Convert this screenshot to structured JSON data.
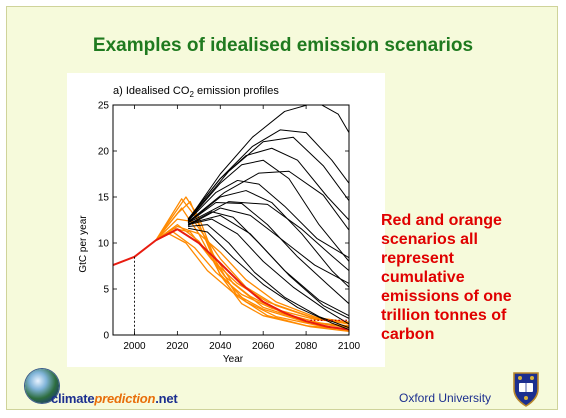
{
  "slide": {
    "title": "Examples of idealised emission scenarios",
    "caption_lines": [
      "Red and orange",
      "scenarios all",
      "represent",
      "cumulative",
      "emissions of one",
      "trillion tonnes of",
      "carbon"
    ],
    "footer": {
      "logo_part1": "climate",
      "logo_part2": "prediction",
      "logo_part3": ".net",
      "university": "Oxford University"
    }
  },
  "chart_data": {
    "type": "line",
    "title_prefix": "a) Idealised CO",
    "title_sub": "2",
    "title_suffix": " emission profiles",
    "xlabel": "Year",
    "ylabel": "GtC per year",
    "xlim": [
      1990,
      2100
    ],
    "ylim": [
      0,
      25
    ],
    "xticks": [
      2000,
      2020,
      2040,
      2060,
      2080,
      2100
    ],
    "yticks": [
      0,
      5,
      10,
      15,
      20,
      25
    ],
    "marker_year": 2000,
    "colors": {
      "red": "#e81c10",
      "orange": "#ff8a00",
      "black": "#000000",
      "dotted": "#c00000"
    },
    "dotted_level": 1.6,
    "series": [
      {
        "color": "red",
        "points": [
          [
            1990,
            7.6
          ],
          [
            2000,
            8.5
          ],
          [
            2010,
            10.3
          ],
          [
            2020,
            11.5
          ],
          [
            2030,
            10.0
          ],
          [
            2040,
            7.8
          ],
          [
            2050,
            5.5
          ],
          [
            2060,
            3.6
          ],
          [
            2070,
            2.4
          ],
          [
            2080,
            1.5
          ],
          [
            2090,
            0.9
          ],
          [
            2100,
            0.6
          ]
        ]
      },
      {
        "color": "orange",
        "points": [
          [
            2010,
            10.3
          ],
          [
            2020,
            13.2
          ],
          [
            2026,
            14.5
          ],
          [
            2032,
            11.0
          ],
          [
            2040,
            6.5
          ],
          [
            2050,
            3.4
          ],
          [
            2060,
            2.1
          ],
          [
            2080,
            1.0
          ],
          [
            2100,
            0.6
          ]
        ]
      },
      {
        "color": "orange",
        "points": [
          [
            2010,
            10.3
          ],
          [
            2022,
            14.8
          ],
          [
            2028,
            13.0
          ],
          [
            2036,
            9.0
          ],
          [
            2046,
            5.6
          ],
          [
            2060,
            3.0
          ],
          [
            2080,
            1.5
          ],
          [
            2100,
            0.9
          ]
        ]
      },
      {
        "color": "orange",
        "points": [
          [
            2010,
            10.3
          ],
          [
            2020,
            12.6
          ],
          [
            2028,
            12.3
          ],
          [
            2040,
            8.3
          ],
          [
            2052,
            5.2
          ],
          [
            2066,
            3.2
          ],
          [
            2084,
            1.8
          ],
          [
            2100,
            1.2
          ]
        ]
      },
      {
        "color": "orange",
        "points": [
          [
            2010,
            10.3
          ],
          [
            2018,
            11.6
          ],
          [
            2026,
            11.2
          ],
          [
            2036,
            8.2
          ],
          [
            2048,
            5.6
          ],
          [
            2062,
            3.6
          ],
          [
            2082,
            2.0
          ],
          [
            2100,
            1.4
          ]
        ]
      },
      {
        "color": "orange",
        "points": [
          [
            2010,
            10.3
          ],
          [
            2020,
            12.0
          ],
          [
            2030,
            10.2
          ],
          [
            2042,
            6.4
          ],
          [
            2054,
            4.2
          ],
          [
            2070,
            2.3
          ],
          [
            2090,
            1.1
          ],
          [
            2100,
            0.8
          ]
        ]
      },
      {
        "color": "orange",
        "points": [
          [
            2010,
            10.3
          ],
          [
            2016,
            11.0
          ],
          [
            2024,
            10.0
          ],
          [
            2034,
            7.0
          ],
          [
            2046,
            4.6
          ],
          [
            2060,
            2.8
          ],
          [
            2080,
            1.4
          ],
          [
            2100,
            1.0
          ]
        ]
      },
      {
        "color": "orange",
        "points": [
          [
            2010,
            10.3
          ],
          [
            2022,
            13.8
          ],
          [
            2030,
            11.0
          ],
          [
            2040,
            6.6
          ],
          [
            2052,
            3.6
          ],
          [
            2066,
            2.0
          ],
          [
            2086,
            1.0
          ],
          [
            2100,
            0.5
          ]
        ]
      },
      {
        "color": "orange",
        "points": [
          [
            2010,
            10.3
          ],
          [
            2024,
            15.0
          ],
          [
            2030,
            12.8
          ],
          [
            2038,
            8.0
          ],
          [
            2048,
            4.2
          ],
          [
            2062,
            2.1
          ],
          [
            2082,
            0.9
          ],
          [
            2100,
            0.4
          ]
        ]
      },
      {
        "color": "orange",
        "points": [
          [
            2010,
            10.3
          ],
          [
            2020,
            11.8
          ],
          [
            2030,
            11.0
          ],
          [
            2040,
            9.0
          ],
          [
            2052,
            6.0
          ],
          [
            2066,
            3.6
          ],
          [
            2086,
            1.8
          ],
          [
            2100,
            1.2
          ]
        ]
      },
      {
        "color": "orange",
        "points": [
          [
            2010,
            10.3
          ],
          [
            2018,
            11.2
          ],
          [
            2028,
            9.5
          ],
          [
            2038,
            6.8
          ],
          [
            2050,
            4.4
          ],
          [
            2064,
            2.9
          ],
          [
            2084,
            1.7
          ],
          [
            2100,
            1.3
          ]
        ]
      },
      {
        "color": "black",
        "points": [
          [
            2025,
            12.5
          ],
          [
            2040,
            17.5
          ],
          [
            2055,
            21.5
          ],
          [
            2070,
            24.3
          ],
          [
            2085,
            25.3
          ],
          [
            2095,
            24.0
          ],
          [
            2100,
            22.0
          ]
        ]
      },
      {
        "color": "black",
        "points": [
          [
            2025,
            12.6
          ],
          [
            2040,
            17.0
          ],
          [
            2055,
            20.5
          ],
          [
            2068,
            22.3
          ],
          [
            2080,
            22.0
          ],
          [
            2092,
            19.0
          ],
          [
            2100,
            16.5
          ]
        ]
      },
      {
        "color": "black",
        "points": [
          [
            2025,
            12.6
          ],
          [
            2040,
            17.0
          ],
          [
            2052,
            19.5
          ],
          [
            2064,
            20.3
          ],
          [
            2076,
            19.0
          ],
          [
            2090,
            15.0
          ],
          [
            2100,
            12.5
          ]
        ]
      },
      {
        "color": "black",
        "points": [
          [
            2025,
            12.4
          ],
          [
            2040,
            16.5
          ],
          [
            2050,
            18.5
          ],
          [
            2060,
            19.0
          ],
          [
            2072,
            17.0
          ],
          [
            2086,
            12.0
          ],
          [
            2100,
            8.0
          ]
        ]
      },
      {
        "color": "black",
        "points": [
          [
            2025,
            12.4
          ],
          [
            2038,
            15.5
          ],
          [
            2048,
            16.8
          ],
          [
            2058,
            16.4
          ],
          [
            2070,
            14.0
          ],
          [
            2085,
            10.5
          ],
          [
            2100,
            8.4
          ]
        ]
      },
      {
        "color": "black",
        "points": [
          [
            2025,
            12.2
          ],
          [
            2040,
            15.0
          ],
          [
            2052,
            15.7
          ],
          [
            2064,
            14.4
          ],
          [
            2078,
            11.0
          ],
          [
            2092,
            7.0
          ],
          [
            2100,
            5.2
          ]
        ]
      },
      {
        "color": "black",
        "points": [
          [
            2025,
            12.2
          ],
          [
            2038,
            14.4
          ],
          [
            2050,
            14.3
          ],
          [
            2062,
            12.0
          ],
          [
            2076,
            8.5
          ],
          [
            2090,
            5.5
          ],
          [
            2100,
            3.4
          ]
        ]
      },
      {
        "color": "black",
        "points": [
          [
            2025,
            12.0
          ],
          [
            2036,
            13.4
          ],
          [
            2046,
            12.8
          ],
          [
            2058,
            10.0
          ],
          [
            2072,
            6.5
          ],
          [
            2088,
            3.2
          ],
          [
            2100,
            1.8
          ]
        ]
      },
      {
        "color": "black",
        "points": [
          [
            2025,
            12.0
          ],
          [
            2036,
            12.6
          ],
          [
            2048,
            11.0
          ],
          [
            2060,
            8.0
          ],
          [
            2074,
            5.2
          ],
          [
            2090,
            2.6
          ],
          [
            2100,
            1.2
          ]
        ]
      },
      {
        "color": "black",
        "points": [
          [
            2025,
            11.8
          ],
          [
            2034,
            12.0
          ],
          [
            2044,
            10.0
          ],
          [
            2056,
            6.8
          ],
          [
            2070,
            4.1
          ],
          [
            2086,
            2.0
          ],
          [
            2100,
            0.8
          ]
        ]
      },
      {
        "color": "black",
        "points": [
          [
            2025,
            11.9
          ],
          [
            2040,
            13.8
          ],
          [
            2054,
            13.0
          ],
          [
            2068,
            10.5
          ],
          [
            2084,
            7.6
          ],
          [
            2100,
            5.6
          ]
        ]
      },
      {
        "color": "black",
        "points": [
          [
            2025,
            12.3
          ],
          [
            2042,
            15.5
          ],
          [
            2058,
            17.6
          ],
          [
            2072,
            17.8
          ],
          [
            2088,
            15.2
          ],
          [
            2100,
            11.4
          ]
        ]
      },
      {
        "color": "black",
        "points": [
          [
            2025,
            12.5
          ],
          [
            2044,
            17.8
          ],
          [
            2060,
            21.0
          ],
          [
            2074,
            21.5
          ],
          [
            2088,
            18.4
          ],
          [
            2100,
            14.6
          ]
        ]
      },
      {
        "color": "black",
        "points": [
          [
            2025,
            11.6
          ],
          [
            2034,
            11.2
          ],
          [
            2046,
            8.4
          ],
          [
            2060,
            5.5
          ],
          [
            2076,
            3.0
          ],
          [
            2092,
            1.3
          ],
          [
            2100,
            0.6
          ]
        ]
      },
      {
        "color": "black",
        "points": [
          [
            2025,
            12.1
          ],
          [
            2040,
            13.0
          ],
          [
            2054,
            11.0
          ],
          [
            2070,
            7.0
          ],
          [
            2086,
            3.8
          ],
          [
            2100,
            2.1
          ]
        ]
      },
      {
        "color": "black",
        "points": [
          [
            2025,
            12.2
          ],
          [
            2044,
            14.5
          ],
          [
            2062,
            14.2
          ],
          [
            2078,
            11.5
          ],
          [
            2092,
            8.6
          ],
          [
            2100,
            7.0
          ]
        ]
      }
    ]
  }
}
